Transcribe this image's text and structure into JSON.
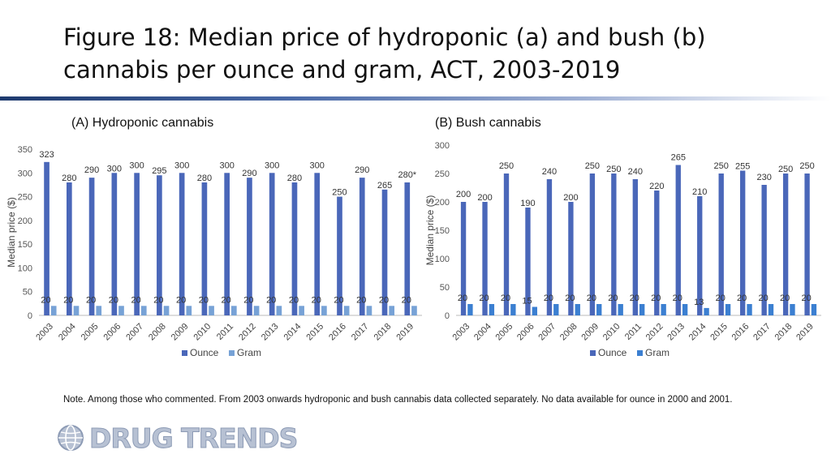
{
  "title": "Figure 18: Median price of hydroponic (a) and bush (b) cannabis per ounce and gram, ACT, 2003-2019",
  "note": "Note. Among those who commented. From 2003 onwards hydroponic and bush cannabis data collected separately. No data available for ounce in 2000 and 2001.",
  "logo": {
    "text": "DRUG TRENDS",
    "icon": "globe-icon"
  },
  "colors": {
    "ounce": "#4a67b9",
    "gram_hydro": "#77a2d6",
    "gram_bush": "#3b7fd1",
    "rule": "#1e3a6e"
  },
  "chart_data": [
    {
      "type": "bar",
      "title": "(A) Hydroponic cannabis",
      "xlabel": "",
      "ylabel": "Median price ($)",
      "ylim": [
        0,
        350
      ],
      "yticks": [
        0,
        50,
        100,
        150,
        200,
        250,
        300,
        350
      ],
      "categories": [
        "2003",
        "2004",
        "2005",
        "2006",
        "2007",
        "2008",
        "2009",
        "2010",
        "2011",
        "2012",
        "2013",
        "2014",
        "2015",
        "2016",
        "2017",
        "2018",
        "2019"
      ],
      "series": [
        {
          "name": "Ounce",
          "values": [
            323,
            280,
            290,
            300,
            300,
            295,
            300,
            280,
            300,
            290,
            300,
            280,
            300,
            250,
            290,
            265,
            280
          ],
          "labels": [
            "323",
            "280",
            "290",
            "300",
            "300",
            "295",
            "300",
            "280",
            "300",
            "290",
            "300",
            "280",
            "300",
            "250",
            "290",
            "265",
            "280*"
          ]
        },
        {
          "name": "Gram",
          "values": [
            20,
            20,
            20,
            20,
            20,
            20,
            20,
            20,
            20,
            20,
            20,
            20,
            20,
            20,
            20,
            20,
            20
          ],
          "labels": [
            "20",
            "20",
            "20",
            "20",
            "20",
            "20",
            "20",
            "20",
            "20",
            "20",
            "20",
            "20",
            "20",
            "20",
            "20",
            "20",
            "20"
          ]
        }
      ],
      "legend": [
        "Ounce",
        "Gram"
      ],
      "legend_position": "bottom",
      "grid": false
    },
    {
      "type": "bar",
      "title": "(B) Bush cannabis",
      "xlabel": "",
      "ylabel": "Median price ($)",
      "ylim": [
        0,
        300
      ],
      "yticks": [
        0,
        50,
        100,
        150,
        200,
        250,
        300
      ],
      "categories": [
        "2003",
        "2004",
        "2005",
        "2006",
        "2007",
        "2008",
        "2009",
        "2010",
        "2011",
        "2012",
        "2013",
        "2014",
        "2015",
        "2016",
        "2017",
        "2018",
        "2019"
      ],
      "series": [
        {
          "name": "Ounce",
          "values": [
            200,
            200,
            250,
            190,
            240,
            200,
            250,
            250,
            240,
            220,
            265,
            210,
            250,
            255,
            230,
            250,
            250
          ],
          "labels": [
            "200",
            "200",
            "250",
            "190",
            "240",
            "200",
            "250",
            "250",
            "240",
            "220",
            "265",
            "210",
            "250",
            "255",
            "230",
            "250",
            "250"
          ]
        },
        {
          "name": "Gram",
          "values": [
            20,
            20,
            20,
            15,
            20,
            20,
            20,
            20,
            20,
            20,
            20,
            13,
            20,
            20,
            20,
            20,
            20
          ],
          "labels": [
            "20",
            "20",
            "20",
            "15",
            "20",
            "20",
            "20",
            "20",
            "20",
            "20",
            "20",
            "13",
            "20",
            "20",
            "20",
            "20",
            "20"
          ]
        }
      ],
      "legend": [
        "Ounce",
        "Gram"
      ],
      "legend_position": "bottom",
      "grid": false
    }
  ]
}
